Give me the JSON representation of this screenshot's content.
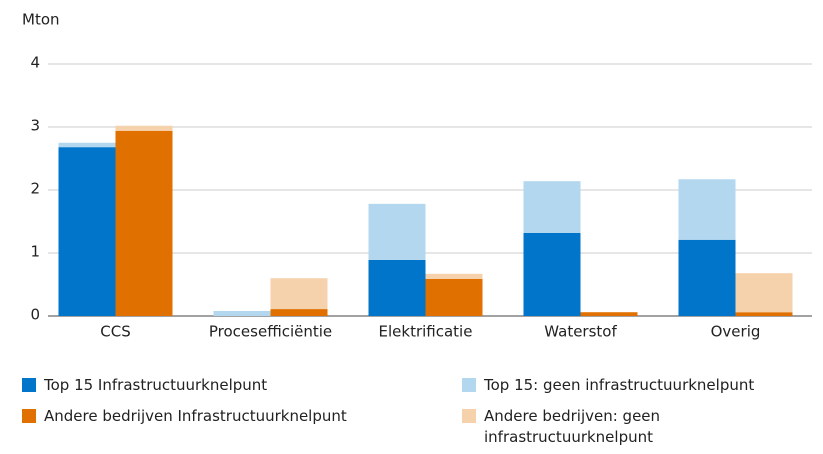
{
  "chart_data": {
    "type": "bar",
    "stacked": true,
    "y_axis_label": "Mton",
    "categories": [
      "CCS",
      "Procesefficiëntie",
      "Elektrificatie",
      "Waterstof",
      "Overig"
    ],
    "series": [
      {
        "name": "Top 15 Infrastructuurknelpunt",
        "color": "#0075c9",
        "stack": "top15",
        "values": [
          2.68,
          0,
          0.89,
          1.32,
          1.21
        ]
      },
      {
        "name": "Top 15: geen infrastructuurknelpunt",
        "color": "#b3d7ee",
        "stack": "top15",
        "values": [
          0.07,
          0.08,
          0.89,
          0.82,
          0.96
        ]
      },
      {
        "name": "Andere bedrijven Infrastructuurknelpunt",
        "color": "#e07000",
        "stack": "andere",
        "values": [
          2.94,
          0.11,
          0.59,
          0.06,
          0.06
        ]
      },
      {
        "name": "Andere bedrijven: geen infrastructuurknelpunt",
        "color": "#f6d2ac",
        "stack": "andere",
        "values": [
          0.08,
          0.49,
          0.08,
          0,
          0.62
        ]
      }
    ],
    "ylim": [
      0,
      4
    ],
    "yticks": [
      0,
      1,
      2,
      3,
      4
    ],
    "grid": true
  }
}
